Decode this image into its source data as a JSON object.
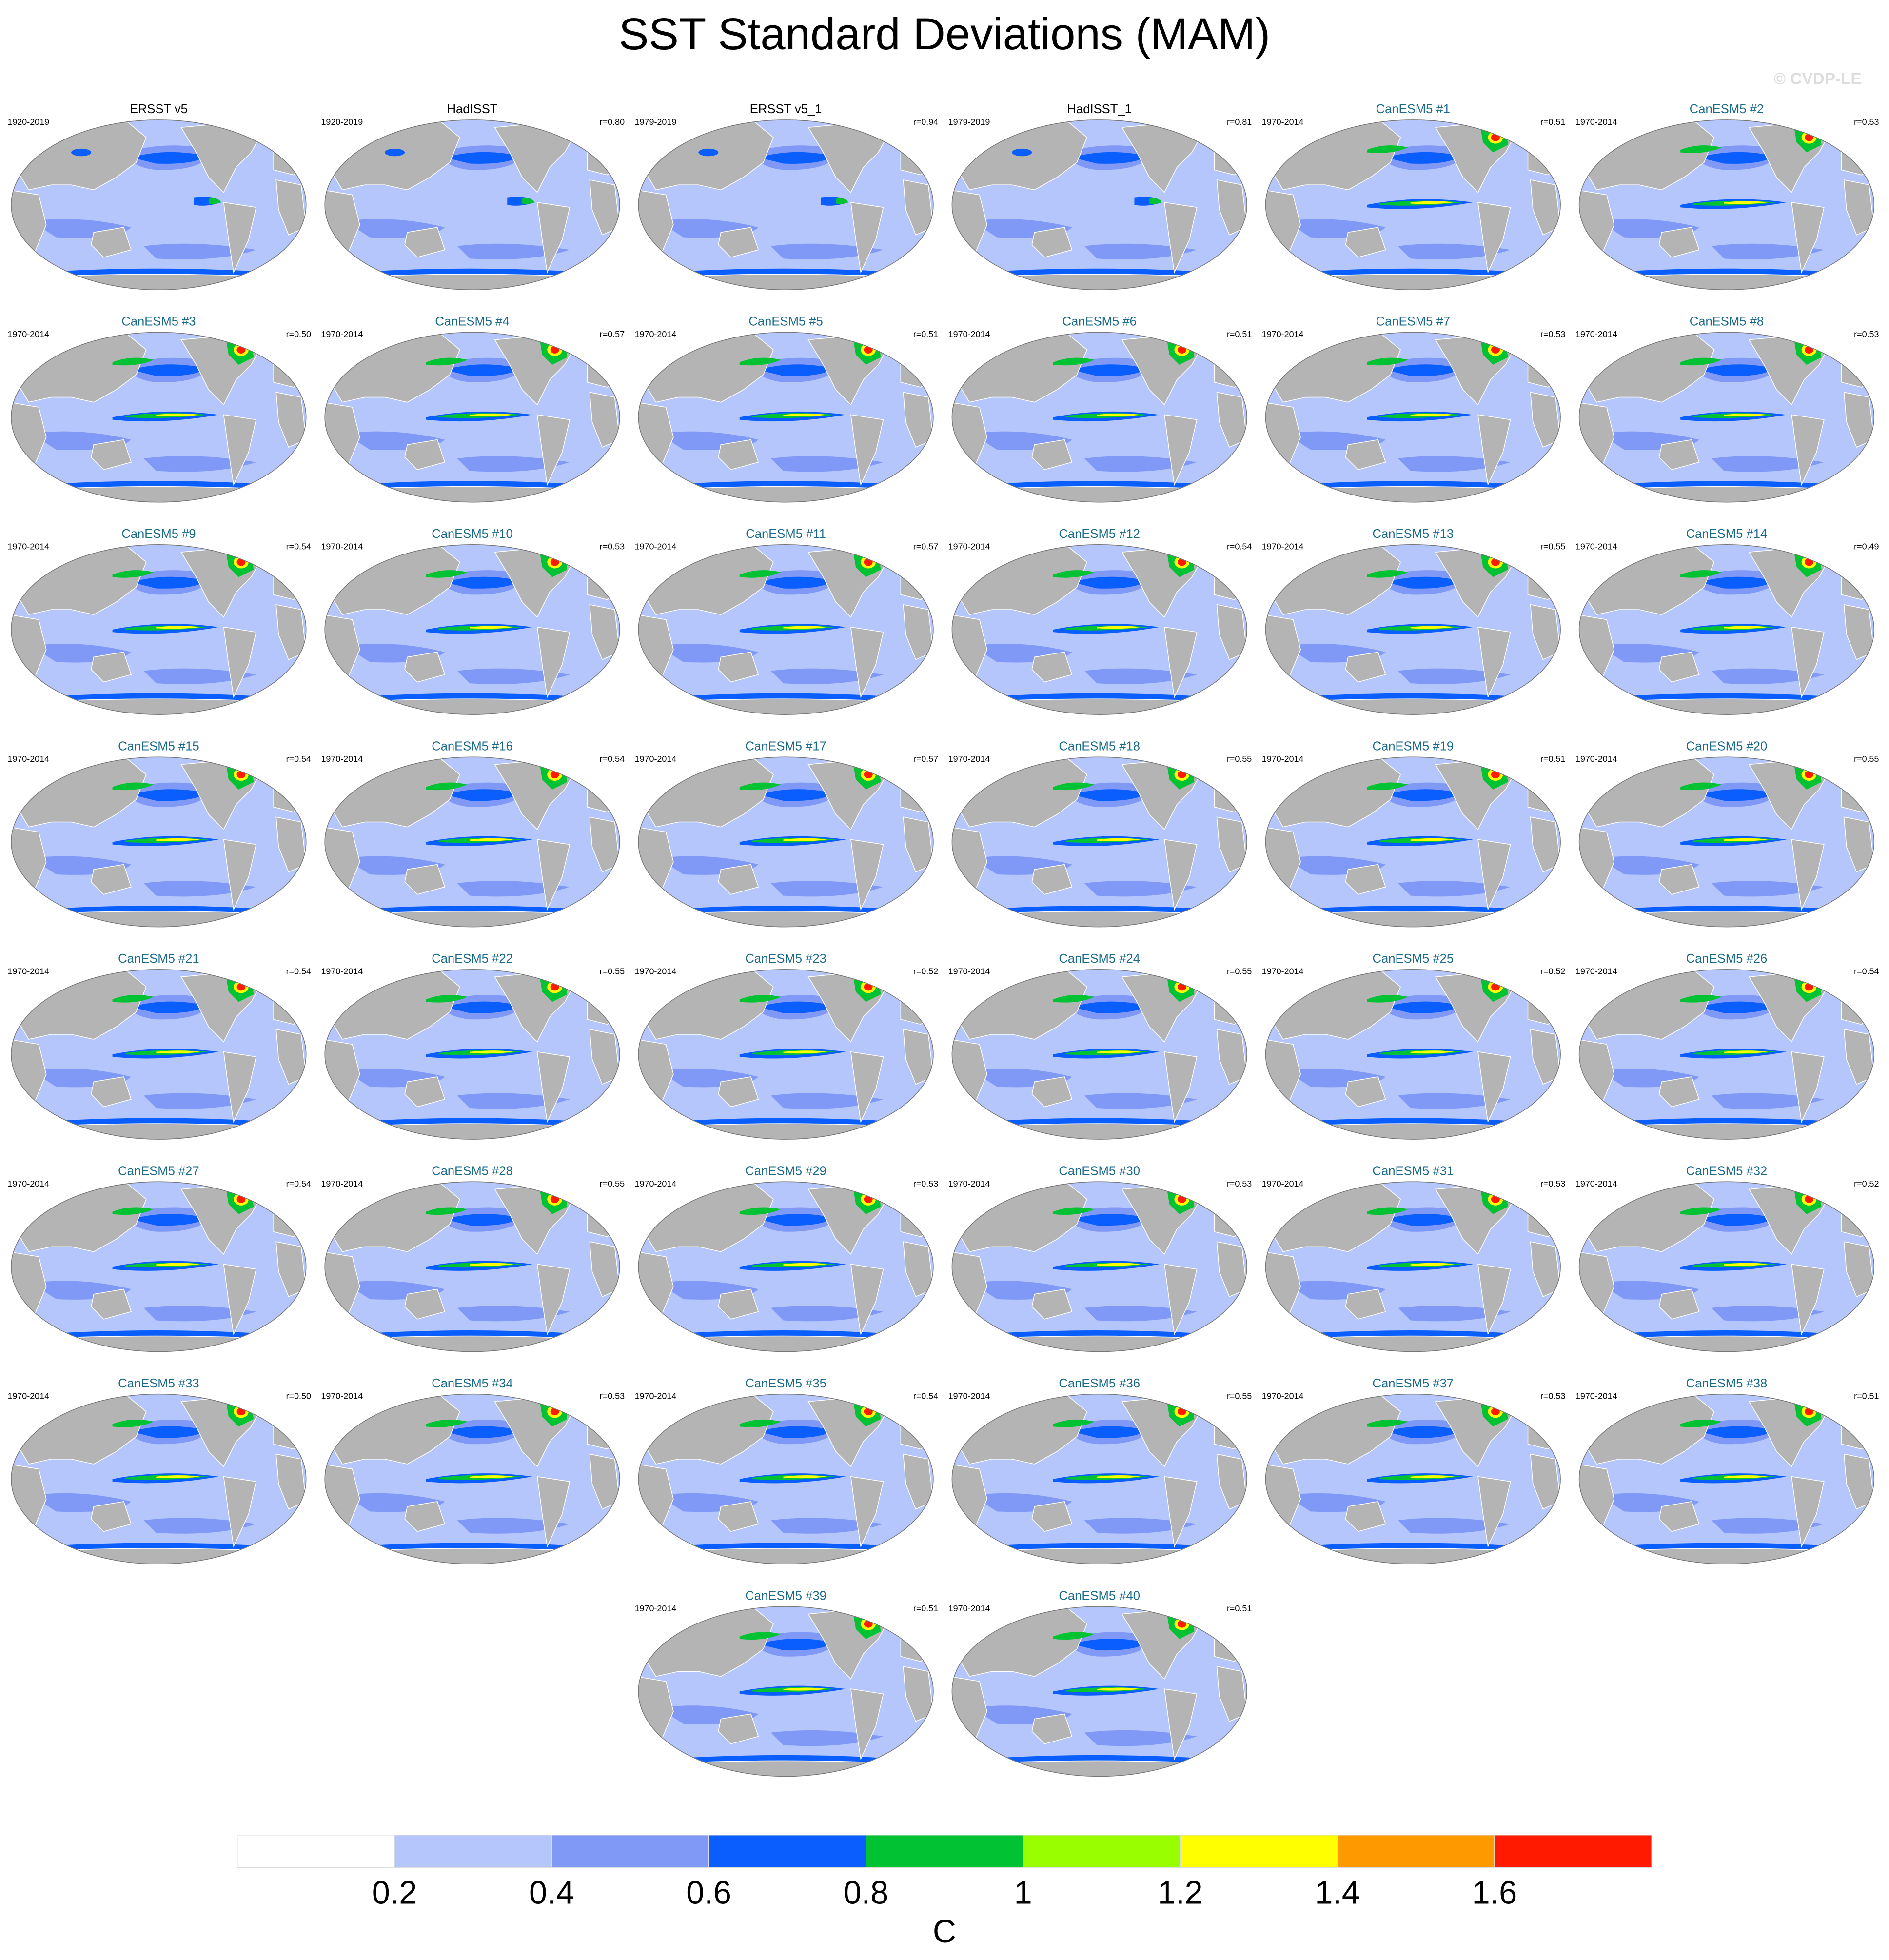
{
  "title": "SST Standard Deviations (MAM)",
  "watermark": "© CVDP-LE",
  "panels": [
    {
      "title": "ERSST v5",
      "period": "1920-2019"
    },
    {
      "title": "HadISST",
      "period": "1920-2019",
      "r": "r=0.80"
    },
    {
      "title": "ERSST v5_1",
      "period": "1979-2019",
      "r": "r=0.94"
    },
    {
      "title": "HadISST_1",
      "period": "1979-2019",
      "r": "r=0.81"
    },
    {
      "title": "CanESM5 #1",
      "period": "1970-2014",
      "r": "r=0.51"
    },
    {
      "title": "CanESM5 #2",
      "period": "1970-2014",
      "r": "r=0.53"
    },
    {
      "title": "CanESM5 #3",
      "period": "1970-2014",
      "r": "r=0.50"
    },
    {
      "title": "CanESM5 #4",
      "period": "1970-2014",
      "r": "r=0.57"
    },
    {
      "title": "CanESM5 #5",
      "period": "1970-2014",
      "r": "r=0.51"
    },
    {
      "title": "CanESM5 #6",
      "period": "1970-2014",
      "r": "r=0.51"
    },
    {
      "title": "CanESM5 #7",
      "period": "1970-2014",
      "r": "r=0.53"
    },
    {
      "title": "CanESM5 #8",
      "period": "1970-2014",
      "r": "r=0.53"
    },
    {
      "title": "CanESM5 #9",
      "period": "1970-2014",
      "r": "r=0.54"
    },
    {
      "title": "CanESM5 #10",
      "period": "1970-2014",
      "r": "r=0.53"
    },
    {
      "title": "CanESM5 #11",
      "period": "1970-2014",
      "r": "r=0.57"
    },
    {
      "title": "CanESM5 #12",
      "period": "1970-2014",
      "r": "r=0.54"
    },
    {
      "title": "CanESM5 #13",
      "period": "1970-2014",
      "r": "r=0.55"
    },
    {
      "title": "CanESM5 #14",
      "period": "1970-2014",
      "r": "r=0.49"
    },
    {
      "title": "CanESM5 #15",
      "period": "1970-2014",
      "r": "r=0.54"
    },
    {
      "title": "CanESM5 #16",
      "period": "1970-2014",
      "r": "r=0.54"
    },
    {
      "title": "CanESM5 #17",
      "period": "1970-2014",
      "r": "r=0.57"
    },
    {
      "title": "CanESM5 #18",
      "period": "1970-2014",
      "r": "r=0.55"
    },
    {
      "title": "CanESM5 #19",
      "period": "1970-2014",
      "r": "r=0.51"
    },
    {
      "title": "CanESM5 #20",
      "period": "1970-2014",
      "r": "r=0.55"
    },
    {
      "title": "CanESM5 #21",
      "period": "1970-2014",
      "r": "r=0.54"
    },
    {
      "title": "CanESM5 #22",
      "period": "1970-2014",
      "r": "r=0.55"
    },
    {
      "title": "CanESM5 #23",
      "period": "1970-2014",
      "r": "r=0.52"
    },
    {
      "title": "CanESM5 #24",
      "period": "1970-2014",
      "r": "r=0.55"
    },
    {
      "title": "CanESM5 #25",
      "period": "1970-2014",
      "r": "r=0.52"
    },
    {
      "title": "CanESM5 #26",
      "period": "1970-2014",
      "r": "r=0.54"
    },
    {
      "title": "CanESM5 #27",
      "period": "1970-2014",
      "r": "r=0.54"
    },
    {
      "title": "CanESM5 #28",
      "period": "1970-2014",
      "r": "r=0.55"
    },
    {
      "title": "CanESM5 #29",
      "period": "1970-2014",
      "r": "r=0.53"
    },
    {
      "title": "CanESM5 #30",
      "period": "1970-2014",
      "r": "r=0.53"
    },
    {
      "title": "CanESM5 #31",
      "period": "1970-2014",
      "r": "r=0.53"
    },
    {
      "title": "CanESM5 #32",
      "period": "1970-2014",
      "r": "r=0.52"
    },
    {
      "title": "CanESM5 #33",
      "period": "1970-2014",
      "r": "r=0.50"
    },
    {
      "title": "CanESM5 #34",
      "period": "1970-2014",
      "r": "r=0.53"
    },
    {
      "title": "CanESM5 #35",
      "period": "1970-2014",
      "r": "r=0.54"
    },
    {
      "title": "CanESM5 #36",
      "period": "1970-2014",
      "r": "r=0.55"
    },
    {
      "title": "CanESM5 #37",
      "period": "1970-2014",
      "r": "r=0.53"
    },
    {
      "title": "CanESM5 #38",
      "period": "1970-2014",
      "r": "r=0.51"
    },
    {
      "title": "CanESM5 #39",
      "period": "1970-2014",
      "r": "r=0.51"
    },
    {
      "title": "CanESM5 #40",
      "period": "1970-2014",
      "r": "r=0.51"
    }
  ],
  "colorbar": {
    "colors": [
      "#ffffff",
      "#b4c6fb",
      "#8099f6",
      "#0a5efd",
      "#00c233",
      "#99ff00",
      "#ffff00",
      "#ff9900",
      "#ff1a00"
    ],
    "ticks": [
      0.2,
      0.4,
      0.6,
      0.8,
      1,
      1.2,
      1.4,
      1.6
    ],
    "label": "C"
  }
}
